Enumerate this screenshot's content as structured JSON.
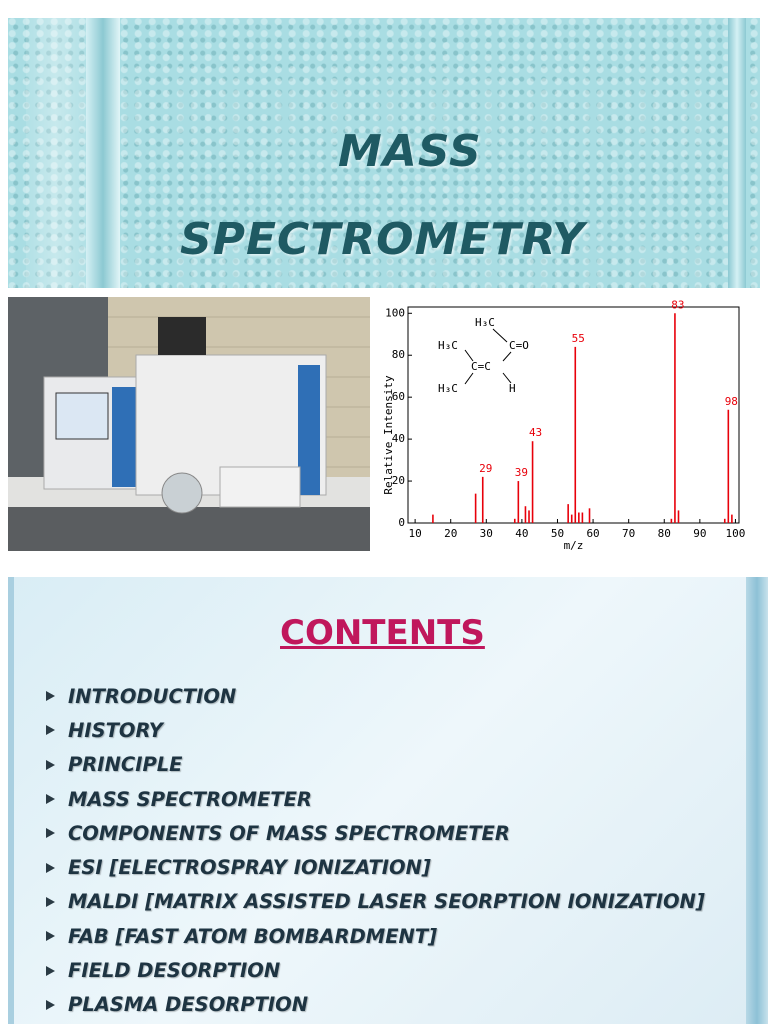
{
  "title_slide": {
    "title_line1": "MASS",
    "title_line2": "SPECTROMETRY"
  },
  "chart_data": {
    "type": "bar",
    "x": [
      15,
      27,
      29,
      38,
      39,
      41,
      42,
      43,
      53,
      54,
      55,
      56,
      57,
      59,
      82,
      83,
      84,
      97,
      98,
      99
    ],
    "values": [
      4,
      14,
      22,
      2,
      20,
      8,
      6,
      39,
      9,
      4,
      84,
      5,
      5,
      7,
      2,
      100,
      6,
      2,
      54,
      4
    ],
    "peak_labels": [
      29,
      39,
      43,
      55,
      83,
      98
    ],
    "color": "#e8000a",
    "xlabel": "m/z",
    "ylabel": "Relative Intensity",
    "xlim": [
      8,
      101
    ],
    "ylim": [
      0,
      103
    ],
    "xticks": [
      10,
      20,
      30,
      40,
      50,
      60,
      70,
      80,
      90,
      100
    ],
    "yticks": [
      0,
      20,
      40,
      60,
      80,
      100
    ],
    "molecule": {
      "top_methyl": "H₃C",
      "carbonyl": "C=O",
      "left_methyl_upper": "H₃C",
      "double_bond": "C=C",
      "left_methyl_lower": "H₃C",
      "hydrogen": "H"
    }
  },
  "contents": {
    "heading": "CONTENTS",
    "items": [
      "INTRODUCTION",
      "HISTORY",
      "PRINCIPLE",
      "MASS SPECTROMETER",
      "COMPONENTS OF MASS SPECTROMETER",
      "ESI [ELECTROSPRAY IONIZATION]",
      "MALDI [MATRIX ASSISTED LASER SEORPTION IONIZATION]",
      "FAB [FAST ATOM BOMBARDMENT]",
      "FIELD DESORPTION",
      "PLASMA DESORPTION"
    ]
  }
}
